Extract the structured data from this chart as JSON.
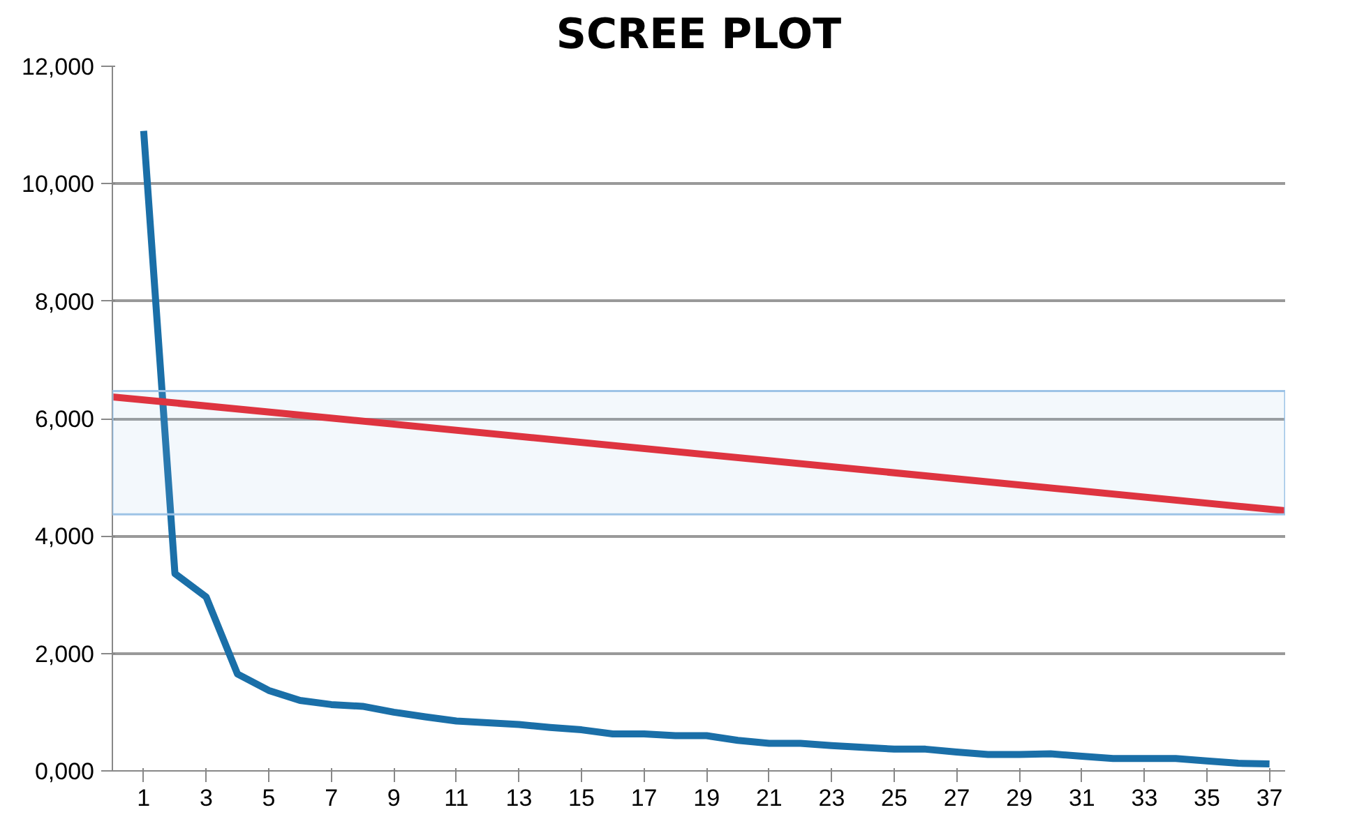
{
  "chart_data": {
    "type": "line",
    "title": "SCREE PLOT",
    "x": [
      1,
      2,
      3,
      4,
      5,
      6,
      7,
      8,
      9,
      10,
      11,
      12,
      13,
      14,
      15,
      16,
      17,
      18,
      19,
      20,
      21,
      22,
      23,
      24,
      25,
      26,
      27,
      28,
      29,
      30,
      31,
      32,
      33,
      34,
      35,
      36,
      37
    ],
    "series": [
      {
        "color": "#1a6fa8",
        "values": [
          10900,
          3360,
          2960,
          1650,
          1370,
          1200,
          1130,
          1100,
          1000,
          920,
          850,
          820,
          790,
          740,
          700,
          630,
          630,
          600,
          600,
          520,
          470,
          470,
          430,
          400,
          370,
          370,
          320,
          280,
          280,
          290,
          250,
          210,
          210,
          210,
          170,
          130,
          120
        ]
      },
      {
        "type": "line",
        "color": "#e8202a",
        "x": [
          0,
          37.5
        ],
        "values": [
          6370,
          4430
        ]
      }
    ],
    "xlim": [
      0,
      37.5
    ],
    "xticks": [
      1,
      3,
      5,
      7,
      9,
      11,
      13,
      15,
      17,
      19,
      21,
      23,
      25,
      27,
      29,
      31,
      33,
      35,
      37
    ],
    "ylim": [
      0,
      12000
    ],
    "yticks": [
      {
        "value": 0,
        "label": "0,000"
      },
      {
        "value": 2000,
        "label": "2,000"
      },
      {
        "value": 4000,
        "label": "4,000"
      },
      {
        "value": 6000,
        "label": "6,000"
      },
      {
        "value": 8000,
        "label": "8,000"
      },
      {
        "value": 10000,
        "label": "10,000"
      },
      {
        "value": 12000,
        "label": "12,000"
      }
    ],
    "bands": [
      {
        "axis": "y",
        "from": 4370,
        "to": 6470,
        "color": "#9dc3e6"
      }
    ],
    "grid": "y",
    "marker": "none",
    "line_style": "solid"
  }
}
